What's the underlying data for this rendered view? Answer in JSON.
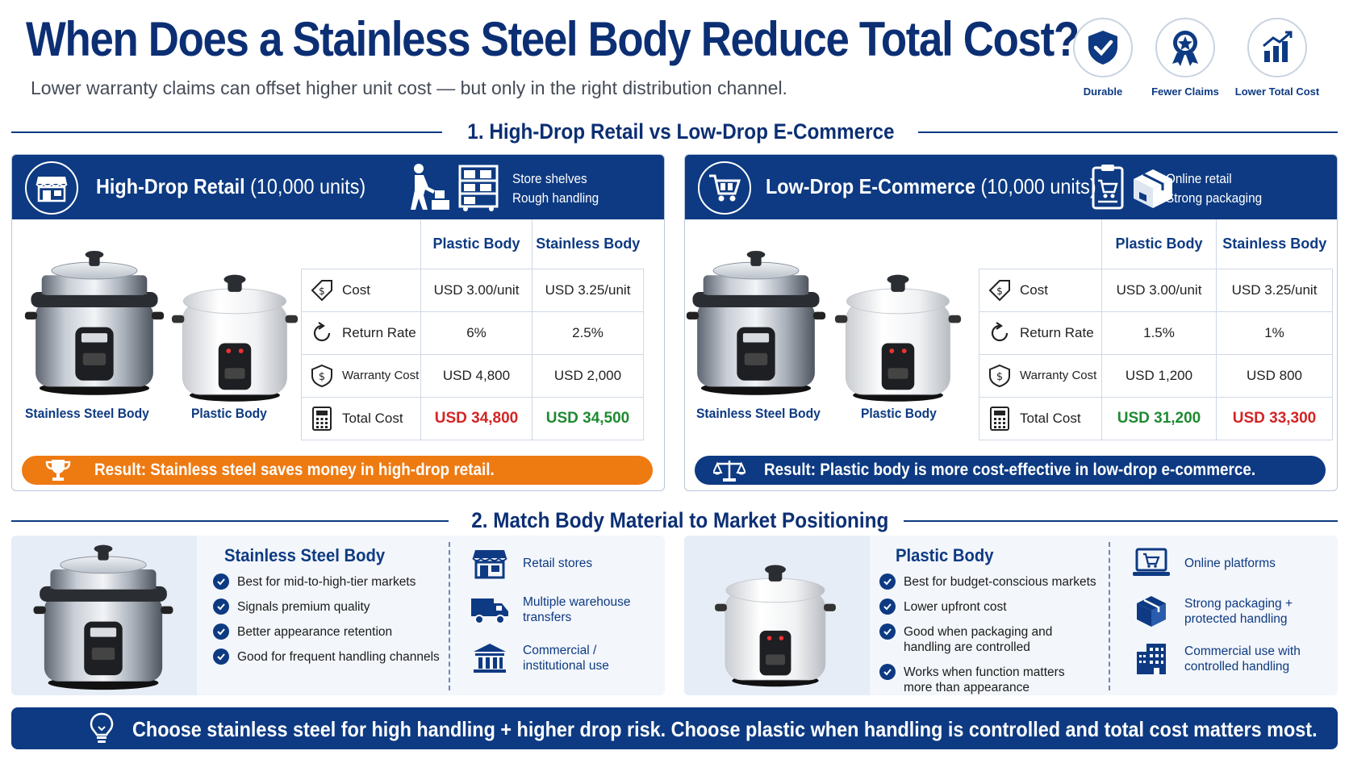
{
  "header": {
    "title": "When Does a Stainless Steel Body Reduce Total Cost?",
    "subtitle": "Lower warranty claims can offset higher unit cost — but only in the right distribution channel.",
    "badges": [
      {
        "label": "Durable",
        "icon": "shield-check-icon"
      },
      {
        "label": "Fewer Claims",
        "icon": "award-ribbon-icon"
      },
      {
        "label": "Lower Total Cost",
        "icon": "bar-chart-up-icon"
      }
    ]
  },
  "section1": {
    "heading": "1. High-Drop Retail vs Low-Drop E-Commerce",
    "retail": {
      "title": "High-Drop Retail",
      "units": "(10,000 units)",
      "notes": [
        "Store shelves",
        "Rough handling"
      ],
      "captions": [
        "Stainless Steel Body",
        "Plastic Body"
      ],
      "columns": [
        "Plastic Body",
        "Stainless Body"
      ],
      "rows": [
        {
          "label": "Cost",
          "icon": "price-tag-icon",
          "values": [
            "USD 3.00/unit",
            "USD 3.25/unit"
          ]
        },
        {
          "label": "Return Rate",
          "icon": "return-arrow-icon",
          "values": [
            "6%",
            "2.5%"
          ]
        },
        {
          "label": "Warranty Cost",
          "icon": "shield-dollar-icon",
          "values": [
            "USD 4,800",
            "USD 2,000"
          ]
        },
        {
          "label": "Total Cost",
          "icon": "calculator-icon",
          "values": [
            "USD 34,800",
            "USD 34,500"
          ]
        }
      ],
      "result": "Result: Stainless steel saves money in high-drop retail."
    },
    "ecommerce": {
      "title": "Low-Drop E-Commerce",
      "units": "(10,000 units)",
      "notes": [
        "Online retail",
        "Strong packaging"
      ],
      "captions": [
        "Stainless Steel Body",
        "Plastic Body"
      ],
      "columns": [
        "Plastic Body",
        "Stainless Body"
      ],
      "rows": [
        {
          "label": "Cost",
          "icon": "price-tag-icon",
          "values": [
            "USD 3.00/unit",
            "USD 3.25/unit"
          ]
        },
        {
          "label": "Return Rate",
          "icon": "return-arrow-icon",
          "values": [
            "1.5%",
            "1%"
          ]
        },
        {
          "label": "Warranty Cost",
          "icon": "shield-dollar-icon",
          "values": [
            "USD 1,200",
            "USD 800"
          ]
        },
        {
          "label": "Total Cost",
          "icon": "calculator-icon",
          "values": [
            "USD 31,200",
            "USD 33,300"
          ]
        }
      ],
      "result": "Result: Plastic body is more cost-effective in low-drop e-commerce."
    }
  },
  "section2": {
    "heading": "2. Match Body Material to Market Positioning",
    "stainless": {
      "title": "Stainless Steel Body",
      "points": [
        "Best for mid-to-high-tier markets",
        "Signals premium quality",
        "Better appearance retention",
        "Good for frequent handling channels"
      ],
      "channels": [
        {
          "text": "Retail stores",
          "icon": "storefront-icon"
        },
        {
          "text": "Multiple warehouse transfers",
          "icon": "truck-icon"
        },
        {
          "text": "Commercial / institutional use",
          "icon": "institution-icon"
        }
      ]
    },
    "plastic": {
      "title": "Plastic Body",
      "points": [
        "Best for budget-conscious markets",
        "Lower upfront cost",
        "Good when packaging and handling are controlled",
        "Works when function matters more than appearance"
      ],
      "channels": [
        {
          "text": "Online platforms",
          "icon": "laptop-cart-icon"
        },
        {
          "text": "Strong packaging + protected handling",
          "icon": "package-icon"
        },
        {
          "text": "Commercial use with controlled handling",
          "icon": "office-building-icon"
        }
      ]
    }
  },
  "footer": {
    "text": "Choose stainless steel for high handling + higher drop risk. Choose plastic when handling is controlled and total cost matters most.",
    "icon": "lightbulb-icon"
  },
  "colors": {
    "navy": "#0d3a82",
    "orange": "#ee7a12",
    "red": "#d42424",
    "green": "#1f8a32"
  }
}
